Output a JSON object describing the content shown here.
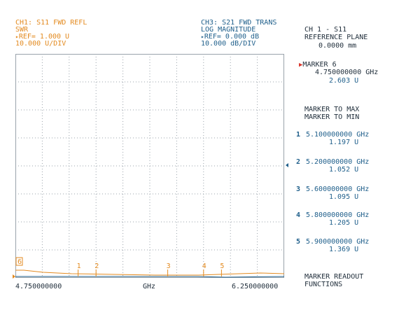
{
  "ch1": {
    "line1": "CH1: S11 FWD REFL",
    "line2": "SWR",
    "line3": "REF= 1.000 U",
    "line4": "10.000 U/DIV"
  },
  "ch3": {
    "line1": "CH3: S21 FWD TRANS",
    "line2": "LOG MAGNITUDE",
    "line3": "REF= 0.000 dB",
    "line4": "10.000 dB/DIV"
  },
  "right_header": {
    "line1": "CH 1 - S11",
    "line2": "REFERENCE PLANE",
    "line3": "0.0000 mm"
  },
  "active_marker": {
    "label": "MARKER 6",
    "freq": "4.750000000 GHz",
    "value": "2.603 U"
  },
  "menu": {
    "marker_to_max": "MARKER TO MAX",
    "marker_to_min": "MARKER TO MIN",
    "readout_1": "MARKER READOUT",
    "readout_2": "FUNCTIONS"
  },
  "markers": [
    {
      "num": "1",
      "freq": "5.100000000 GHz",
      "value": "1.197 U"
    },
    {
      "num": "2",
      "freq": "5.200000000 GHz",
      "value": "1.052 U"
    },
    {
      "num": "3",
      "freq": "5.600000000 GHz",
      "value": "1.095 U"
    },
    {
      "num": "4",
      "freq": "5.800000000 GHz",
      "value": "1.205 U"
    },
    {
      "num": "5",
      "freq": "5.900000000 GHz",
      "value": "1.369 U"
    }
  ],
  "axis": {
    "start": "4.750000000",
    "unit": "GHz",
    "stop": "6.250000000"
  },
  "plot_markers": [
    {
      "label": "1",
      "freq_ghz": 5.1
    },
    {
      "label": "2",
      "freq_ghz": 5.2
    },
    {
      "label": "3",
      "freq_ghz": 5.6
    },
    {
      "label": "4",
      "freq_ghz": 5.8
    },
    {
      "label": "5",
      "freq_ghz": 5.9
    },
    {
      "label": "6",
      "freq_ghz": 4.75
    }
  ],
  "colors": {
    "channel1": "#e38a1f",
    "channel3": "#1f5f8b",
    "grid": "#9aa3ab"
  }
}
